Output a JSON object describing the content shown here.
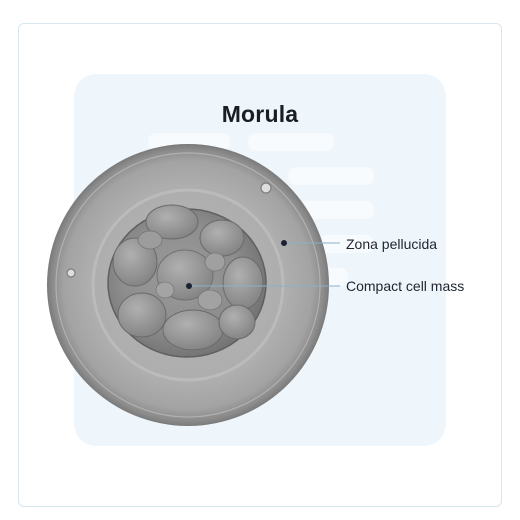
{
  "title": "Morula",
  "labels": {
    "zona_pellucida": "Zona pellucida",
    "compact_cell_mass": "Compact cell mass"
  },
  "colors": {
    "card_border": "#d7e7f0",
    "panel_bg": "#eef6fb",
    "leader_line": "#8ab0c8",
    "marker": "#1a2233"
  }
}
